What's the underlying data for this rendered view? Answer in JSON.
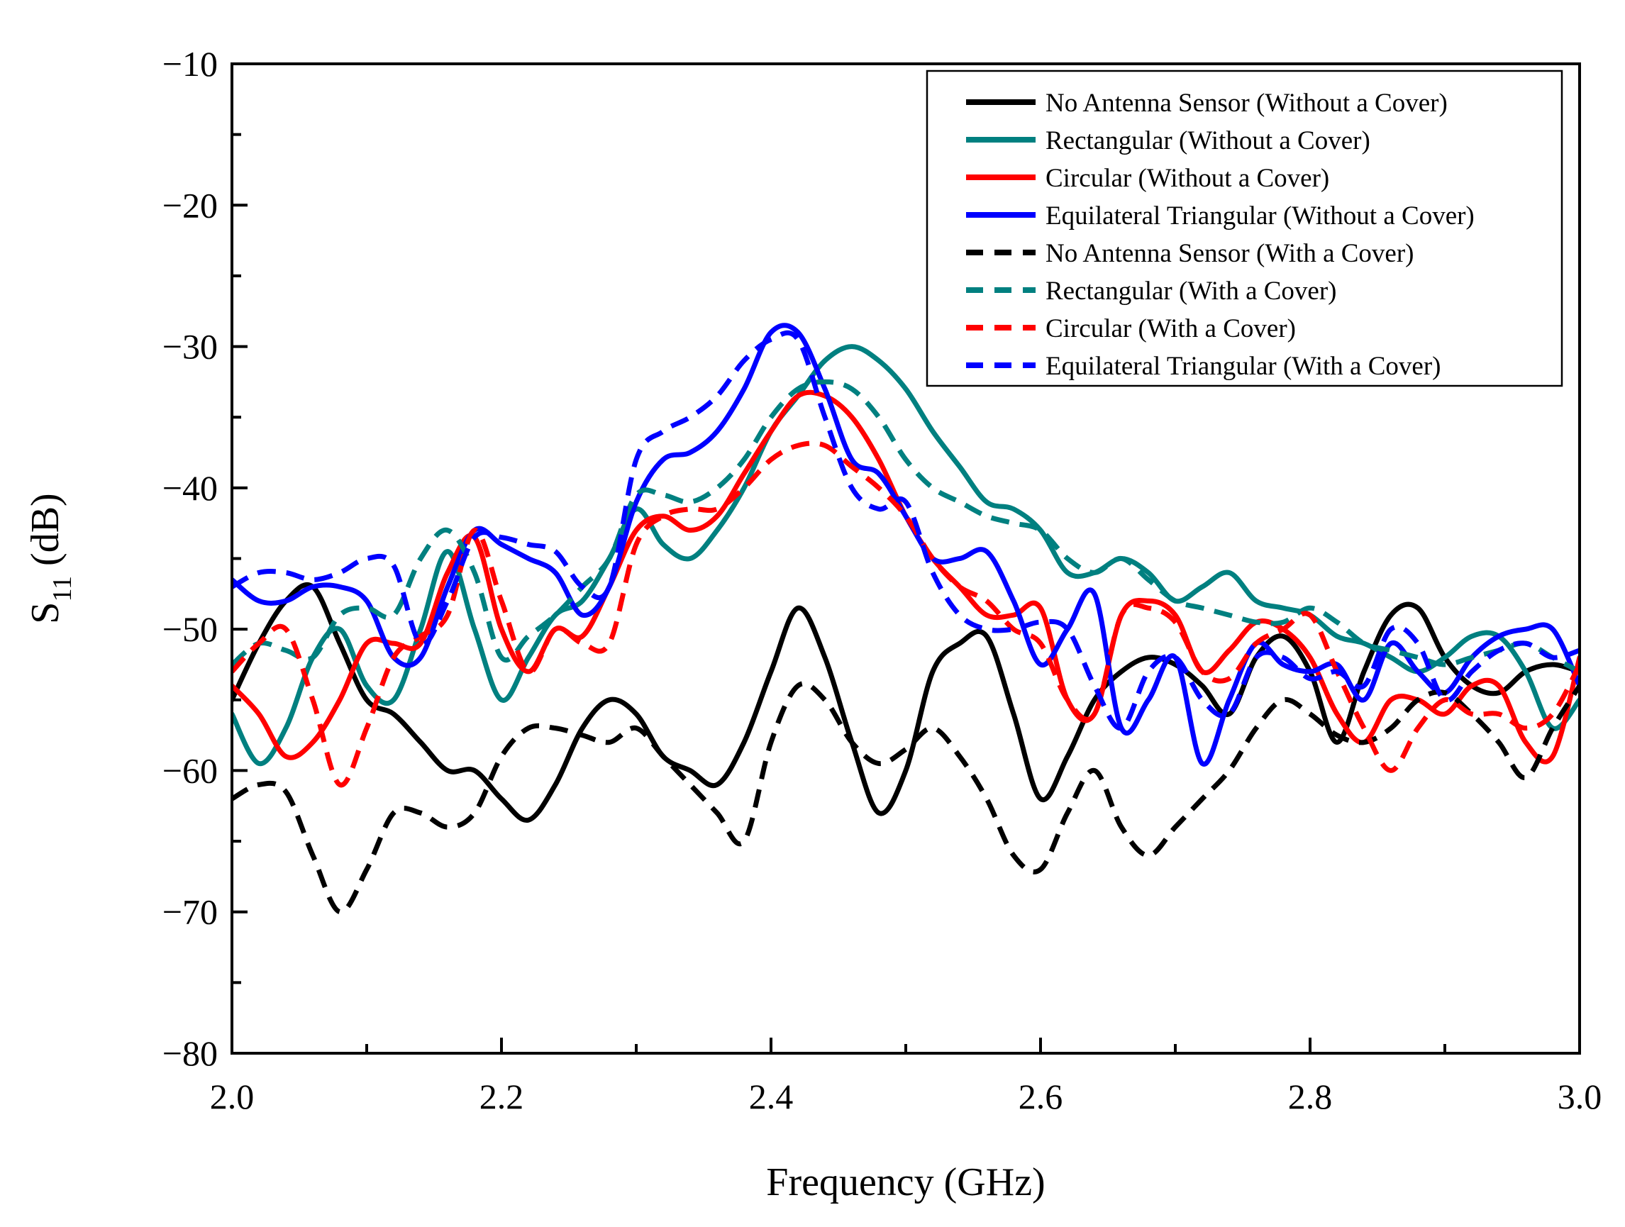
{
  "chart_data": {
    "type": "line",
    "title": "",
    "xlabel": "Frequency (GHz)",
    "ylabel": {
      "main": "S",
      "sub": "11",
      "unit": "(dB)"
    },
    "xlim": [
      2.0,
      3.0
    ],
    "ylim": [
      -80,
      -10
    ],
    "xticks": [
      2.0,
      2.2,
      2.4,
      2.6,
      2.8,
      3.0
    ],
    "xtick_labels": [
      "2.0",
      "2.2",
      "2.4",
      "2.6",
      "2.8",
      "3.0"
    ],
    "yticks": [
      -80,
      -70,
      -60,
      -50,
      -40,
      -30,
      -20,
      -10
    ],
    "ytick_labels": [
      "−80",
      "−70",
      "−60",
      "−50",
      "−40",
      "−30",
      "−20",
      "−10"
    ],
    "grid": false,
    "legend_position": "top-right",
    "series": [
      {
        "name": "No Antenna Sensor (Without a Cover)",
        "color": "#000000",
        "style": "solid",
        "x": [
          2.0,
          2.02,
          2.04,
          2.06,
          2.08,
          2.1,
          2.12,
          2.14,
          2.16,
          2.18,
          2.2,
          2.22,
          2.24,
          2.26,
          2.28,
          2.3,
          2.32,
          2.34,
          2.36,
          2.38,
          2.4,
          2.42,
          2.44,
          2.46,
          2.48,
          2.5,
          2.52,
          2.54,
          2.56,
          2.58,
          2.6,
          2.62,
          2.64,
          2.66,
          2.68,
          2.7,
          2.72,
          2.74,
          2.76,
          2.78,
          2.8,
          2.82,
          2.84,
          2.86,
          2.88,
          2.9,
          2.92,
          2.94,
          2.96,
          2.98,
          3.0
        ],
        "y": [
          -55,
          -51,
          -48,
          -47,
          -51,
          -55,
          -56,
          -58,
          -60,
          -60,
          -62,
          -63.5,
          -61,
          -57,
          -55,
          -56,
          -59,
          -60,
          -61,
          -58,
          -53,
          -48.5,
          -52,
          -58,
          -63,
          -60,
          -53,
          -51,
          -50.5,
          -56,
          -62,
          -59,
          -55,
          -53,
          -52,
          -52.5,
          -54,
          -56,
          -52,
          -50.5,
          -53,
          -58,
          -53,
          -49,
          -48.5,
          -52,
          -54,
          -54.5,
          -53,
          -52.5,
          -53
        ]
      },
      {
        "name": "Rectangular (Without a Cover)",
        "color": "#008080",
        "style": "solid",
        "x": [
          2.0,
          2.02,
          2.04,
          2.06,
          2.08,
          2.1,
          2.12,
          2.14,
          2.16,
          2.18,
          2.2,
          2.22,
          2.24,
          2.26,
          2.28,
          2.3,
          2.32,
          2.34,
          2.36,
          2.38,
          2.4,
          2.42,
          2.44,
          2.46,
          2.48,
          2.5,
          2.52,
          2.54,
          2.56,
          2.58,
          2.6,
          2.62,
          2.64,
          2.66,
          2.68,
          2.7,
          2.72,
          2.74,
          2.76,
          2.78,
          2.8,
          2.82,
          2.84,
          2.86,
          2.88,
          2.9,
          2.92,
          2.94,
          2.96,
          2.98,
          3.0
        ],
        "y": [
          -56,
          -59.5,
          -57,
          -52,
          -50,
          -54,
          -55,
          -50,
          -44.5,
          -50,
          -55,
          -52,
          -49,
          -48,
          -45,
          -41.5,
          -44,
          -45,
          -43,
          -40,
          -36,
          -33.5,
          -31,
          -30,
          -31,
          -33,
          -36,
          -38.5,
          -41,
          -41.5,
          -43,
          -46,
          -46,
          -45,
          -46,
          -48,
          -47,
          -46,
          -48,
          -48.5,
          -49,
          -50.5,
          -51,
          -52,
          -53,
          -52,
          -50.5,
          -50.5,
          -53,
          -57,
          -55
        ]
      },
      {
        "name": "Circular (Without a Cover)",
        "color": "#ff0000",
        "style": "solid",
        "x": [
          2.0,
          2.02,
          2.04,
          2.06,
          2.08,
          2.1,
          2.12,
          2.14,
          2.16,
          2.18,
          2.2,
          2.22,
          2.24,
          2.26,
          2.28,
          2.3,
          2.32,
          2.34,
          2.36,
          2.38,
          2.4,
          2.42,
          2.44,
          2.46,
          2.48,
          2.5,
          2.52,
          2.54,
          2.56,
          2.58,
          2.6,
          2.62,
          2.64,
          2.66,
          2.68,
          2.7,
          2.72,
          2.74,
          2.76,
          2.78,
          2.8,
          2.82,
          2.84,
          2.86,
          2.88,
          2.9,
          2.92,
          2.94,
          2.96,
          2.98,
          3.0
        ],
        "y": [
          -54,
          -56,
          -59,
          -58,
          -55,
          -51,
          -51,
          -51,
          -46,
          -43.5,
          -50,
          -53,
          -50,
          -50.5,
          -47,
          -43,
          -42,
          -43,
          -42,
          -39,
          -36,
          -33.5,
          -33.5,
          -35,
          -38,
          -42,
          -45,
          -47,
          -49,
          -49,
          -48.5,
          -55,
          -56,
          -49,
          -48,
          -49,
          -53,
          -51.5,
          -49.5,
          -50,
          -52,
          -56,
          -58,
          -55,
          -55,
          -56,
          -54,
          -54,
          -58,
          -59,
          -52
        ]
      },
      {
        "name": "Equilateral Triangular (Without a Cover)",
        "color": "#0000ff",
        "style": "solid",
        "x": [
          2.0,
          2.02,
          2.04,
          2.06,
          2.08,
          2.1,
          2.12,
          2.14,
          2.16,
          2.18,
          2.2,
          2.22,
          2.24,
          2.26,
          2.28,
          2.3,
          2.32,
          2.34,
          2.36,
          2.38,
          2.4,
          2.42,
          2.44,
          2.46,
          2.48,
          2.5,
          2.52,
          2.54,
          2.56,
          2.58,
          2.6,
          2.62,
          2.64,
          2.66,
          2.68,
          2.7,
          2.72,
          2.74,
          2.76,
          2.78,
          2.8,
          2.82,
          2.84,
          2.86,
          2.88,
          2.9,
          2.92,
          2.94,
          2.96,
          2.98,
          3.0
        ],
        "y": [
          -46.5,
          -48,
          -48,
          -47,
          -47,
          -48,
          -52,
          -52,
          -47,
          -43,
          -44,
          -45,
          -46,
          -49,
          -47,
          -41,
          -38,
          -37.5,
          -36,
          -33,
          -29,
          -29,
          -33,
          -38,
          -39,
          -42,
          -45,
          -45,
          -44.5,
          -48,
          -52.5,
          -50,
          -47.5,
          -57,
          -55,
          -52,
          -59.5,
          -55,
          -51,
          -52.5,
          -53,
          -52.5,
          -55,
          -51,
          -53,
          -54.5,
          -52,
          -50.5,
          -50,
          -50,
          -54
        ]
      },
      {
        "name": "No Antenna Sensor (With a Cover)",
        "color": "#000000",
        "style": "dashed",
        "x": [
          2.0,
          2.02,
          2.04,
          2.06,
          2.08,
          2.1,
          2.12,
          2.14,
          2.16,
          2.18,
          2.2,
          2.22,
          2.24,
          2.26,
          2.28,
          2.3,
          2.32,
          2.34,
          2.36,
          2.38,
          2.4,
          2.42,
          2.44,
          2.46,
          2.48,
          2.5,
          2.52,
          2.54,
          2.56,
          2.58,
          2.6,
          2.62,
          2.64,
          2.66,
          2.68,
          2.7,
          2.72,
          2.74,
          2.76,
          2.78,
          2.8,
          2.82,
          2.84,
          2.86,
          2.88,
          2.9,
          2.92,
          2.94,
          2.96,
          2.98,
          3.0
        ],
        "y": [
          -62,
          -61,
          -61.5,
          -66,
          -70,
          -67,
          -63,
          -63,
          -64,
          -63,
          -59,
          -57,
          -57,
          -57.5,
          -58,
          -57,
          -59,
          -61,
          -63,
          -65,
          -58,
          -54,
          -55,
          -58,
          -59.5,
          -58.5,
          -57,
          -59,
          -62,
          -66,
          -67,
          -63,
          -60,
          -64,
          -66,
          -64,
          -62,
          -60,
          -57,
          -55,
          -56,
          -57.5,
          -58,
          -57,
          -55,
          -54.5,
          -56,
          -58,
          -60.5,
          -57,
          -54
        ]
      },
      {
        "name": "Rectangular (With a Cover)",
        "color": "#008080",
        "style": "dashed",
        "x": [
          2.0,
          2.02,
          2.04,
          2.06,
          2.08,
          2.1,
          2.12,
          2.14,
          2.16,
          2.18,
          2.2,
          2.22,
          2.24,
          2.26,
          2.28,
          2.3,
          2.32,
          2.34,
          2.36,
          2.38,
          2.4,
          2.42,
          2.44,
          2.46,
          2.48,
          2.5,
          2.52,
          2.54,
          2.56,
          2.58,
          2.6,
          2.62,
          2.64,
          2.66,
          2.68,
          2.7,
          2.72,
          2.74,
          2.76,
          2.78,
          2.8,
          2.82,
          2.84,
          2.86,
          2.88,
          2.9,
          2.92,
          2.94,
          2.96,
          2.98,
          3.0
        ],
        "y": [
          -52.5,
          -51,
          -51.5,
          -52,
          -49,
          -48.5,
          -49,
          -45,
          -43,
          -46,
          -52,
          -50.5,
          -49,
          -47,
          -45,
          -40.5,
          -40.5,
          -41,
          -40,
          -38,
          -35,
          -33,
          -32.5,
          -33,
          -35,
          -38,
          -40,
          -41,
          -42,
          -42.5,
          -43,
          -45,
          -46,
          -45,
          -46.5,
          -48,
          -48.5,
          -49,
          -49.5,
          -49.5,
          -48.5,
          -49.5,
          -51,
          -51.5,
          -52,
          -52.5,
          -52,
          -51.5,
          -51,
          -52,
          -53
        ]
      },
      {
        "name": "Circular (With a Cover)",
        "color": "#ff0000",
        "style": "dashed",
        "x": [
          2.0,
          2.02,
          2.04,
          2.06,
          2.08,
          2.1,
          2.12,
          2.14,
          2.16,
          2.18,
          2.2,
          2.22,
          2.24,
          2.26,
          2.28,
          2.3,
          2.32,
          2.34,
          2.36,
          2.38,
          2.4,
          2.42,
          2.44,
          2.46,
          2.48,
          2.5,
          2.52,
          2.54,
          2.56,
          2.58,
          2.6,
          2.62,
          2.64,
          2.66,
          2.68,
          2.7,
          2.72,
          2.74,
          2.76,
          2.78,
          2.8,
          2.82,
          2.84,
          2.86,
          2.88,
          2.9,
          2.92,
          2.94,
          2.96,
          2.98,
          3.0
        ],
        "y": [
          -53,
          -51,
          -50,
          -55,
          -61,
          -57,
          -52,
          -50.5,
          -49,
          -43,
          -48,
          -53,
          -50,
          -51,
          -51,
          -44,
          -42,
          -41.5,
          -41.5,
          -40,
          -38,
          -37,
          -37,
          -38.5,
          -40,
          -42,
          -45,
          -47,
          -48,
          -50,
          -51,
          -55,
          -56,
          -49,
          -48.5,
          -49.5,
          -53,
          -53.5,
          -51,
          -50,
          -49,
          -53,
          -57,
          -60,
          -57,
          -55,
          -56,
          -56,
          -57,
          -56,
          -52.5
        ]
      },
      {
        "name": "Equilateral Triangular (With a Cover)",
        "color": "#0000ff",
        "style": "dashed",
        "x": [
          2.0,
          2.02,
          2.04,
          2.06,
          2.08,
          2.1,
          2.12,
          2.14,
          2.16,
          2.18,
          2.2,
          2.22,
          2.24,
          2.26,
          2.28,
          2.3,
          2.32,
          2.34,
          2.36,
          2.38,
          2.4,
          2.42,
          2.44,
          2.46,
          2.48,
          2.5,
          2.52,
          2.54,
          2.56,
          2.58,
          2.6,
          2.62,
          2.64,
          2.66,
          2.68,
          2.7,
          2.72,
          2.74,
          2.76,
          2.78,
          2.8,
          2.82,
          2.84,
          2.86,
          2.88,
          2.9,
          2.92,
          2.94,
          2.96,
          2.98,
          3.0
        ],
        "y": [
          -47,
          -46,
          -46,
          -46.5,
          -46,
          -45,
          -45.5,
          -51,
          -48,
          -43.5,
          -43.5,
          -44,
          -44.5,
          -47,
          -47,
          -38,
          -36,
          -35,
          -33.5,
          -31,
          -29.5,
          -29.5,
          -35,
          -40,
          -41.5,
          -41,
          -46,
          -49,
          -50,
          -50,
          -49.5,
          -50,
          -54,
          -57,
          -53,
          -52,
          -55,
          -56,
          -52,
          -52,
          -53.5,
          -53,
          -54,
          -50,
          -51,
          -55,
          -53,
          -51.5,
          -51,
          -52,
          -51.5
        ]
      }
    ]
  }
}
